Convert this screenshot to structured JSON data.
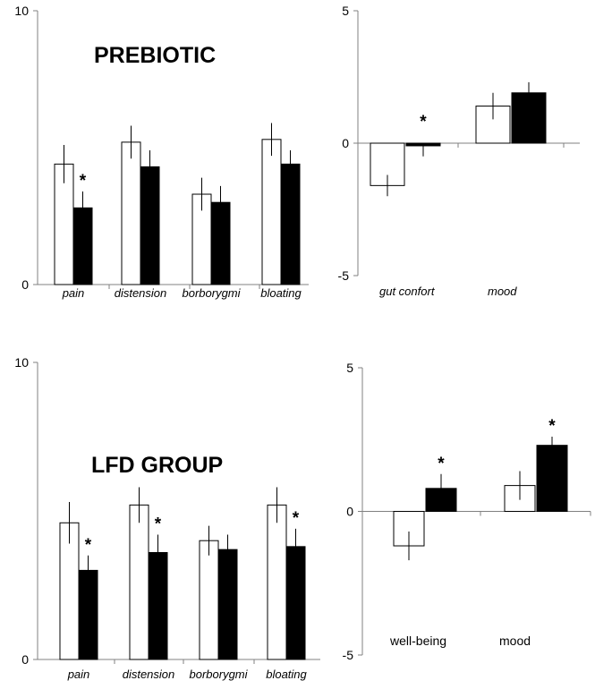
{
  "chart_data": [
    {
      "panel": "top-left",
      "type": "bar",
      "title": "PREBIOTIC",
      "categories": [
        "pain",
        "distension",
        "borborygmi",
        "bloating"
      ],
      "ylim": [
        0,
        10
      ],
      "yticks": [
        "0",
        "10"
      ],
      "colors": [
        "#ffffff",
        "#000000"
      ],
      "series": [
        {
          "values": [
            4.4,
            5.2,
            3.3,
            5.3
          ],
          "errors": [
            0.7,
            0.6,
            0.6,
            0.6
          ]
        },
        {
          "values": [
            2.8,
            4.3,
            3.0,
            4.4
          ],
          "errors": [
            0.6,
            0.6,
            0.6,
            0.5
          ]
        }
      ],
      "significance": [
        "*",
        "",
        "",
        ""
      ]
    },
    {
      "panel": "top-right",
      "type": "bar",
      "title": "",
      "categories": [
        "gut confort",
        "mood"
      ],
      "ylim": [
        -5,
        5
      ],
      "yticks": [
        "-5",
        "0",
        "5"
      ],
      "colors": [
        "#ffffff",
        "#000000"
      ],
      "series": [
        {
          "values": [
            -1.6,
            1.4
          ],
          "errors": [
            0.4,
            0.5
          ]
        },
        {
          "values": [
            -0.1,
            1.9
          ],
          "errors": [
            0.4,
            0.4
          ]
        }
      ],
      "significance": [
        "*",
        ""
      ]
    },
    {
      "panel": "bottom-left",
      "type": "bar",
      "title": "LFD GROUP",
      "categories": [
        "pain",
        "distension",
        "borborygmi",
        "bloating"
      ],
      "ylim": [
        0,
        10
      ],
      "yticks": [
        "0",
        "10"
      ],
      "colors": [
        "#ffffff",
        "#000000"
      ],
      "series": [
        {
          "values": [
            4.6,
            5.2,
            4.0,
            5.2
          ],
          "errors": [
            0.7,
            0.6,
            0.5,
            0.6
          ]
        },
        {
          "values": [
            3.0,
            3.6,
            3.7,
            3.8
          ],
          "errors": [
            0.5,
            0.6,
            0.5,
            0.6
          ]
        }
      ],
      "significance": [
        "*",
        "*",
        "",
        "*"
      ]
    },
    {
      "panel": "bottom-right",
      "type": "bar",
      "title": "",
      "categories": [
        "well-being",
        "mood"
      ],
      "ylim": [
        -5,
        5
      ],
      "yticks": [
        "-5",
        "0",
        "5"
      ],
      "colors": [
        "#ffffff",
        "#000000"
      ],
      "series": [
        {
          "values": [
            -1.2,
            0.9
          ],
          "errors": [
            0.5,
            0.5
          ]
        },
        {
          "values": [
            0.8,
            2.3
          ],
          "errors": [
            0.5,
            0.3
          ]
        }
      ],
      "significance": [
        "*",
        "*"
      ]
    }
  ]
}
